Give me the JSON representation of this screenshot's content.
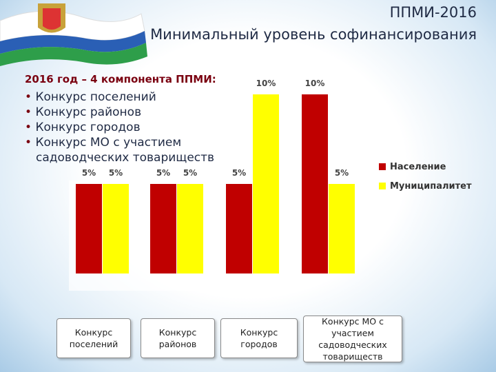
{
  "title": "ППМИ-2016",
  "subtitle": "Минимальный уровень софинансирования",
  "intro": {
    "heading": "2016 год – 4 компонента ППМИ:",
    "items": [
      "Конкурс поселений",
      "Конкурс районов",
      "Конкурс городов",
      "Конкурс МО с участием садоводческих товариществ"
    ]
  },
  "chart_data": {
    "type": "bar",
    "categories": [
      "Конкурс поселений",
      "Конкурс районов",
      "Конкурс городов",
      "Конкурс МО с участием садоводческих товариществ"
    ],
    "series": [
      {
        "name": "Население",
        "color": "#c00000",
        "values": [
          5,
          5,
          5,
          10
        ],
        "value_labels": [
          "5%",
          "5%",
          "5%",
          "10%"
        ]
      },
      {
        "name": "Муниципалитет",
        "color": "#ffff00",
        "values": [
          5,
          5,
          10,
          5
        ],
        "value_labels": [
          "5%",
          "5%",
          "10%",
          "5%"
        ]
      }
    ],
    "legend": "right"
  }
}
